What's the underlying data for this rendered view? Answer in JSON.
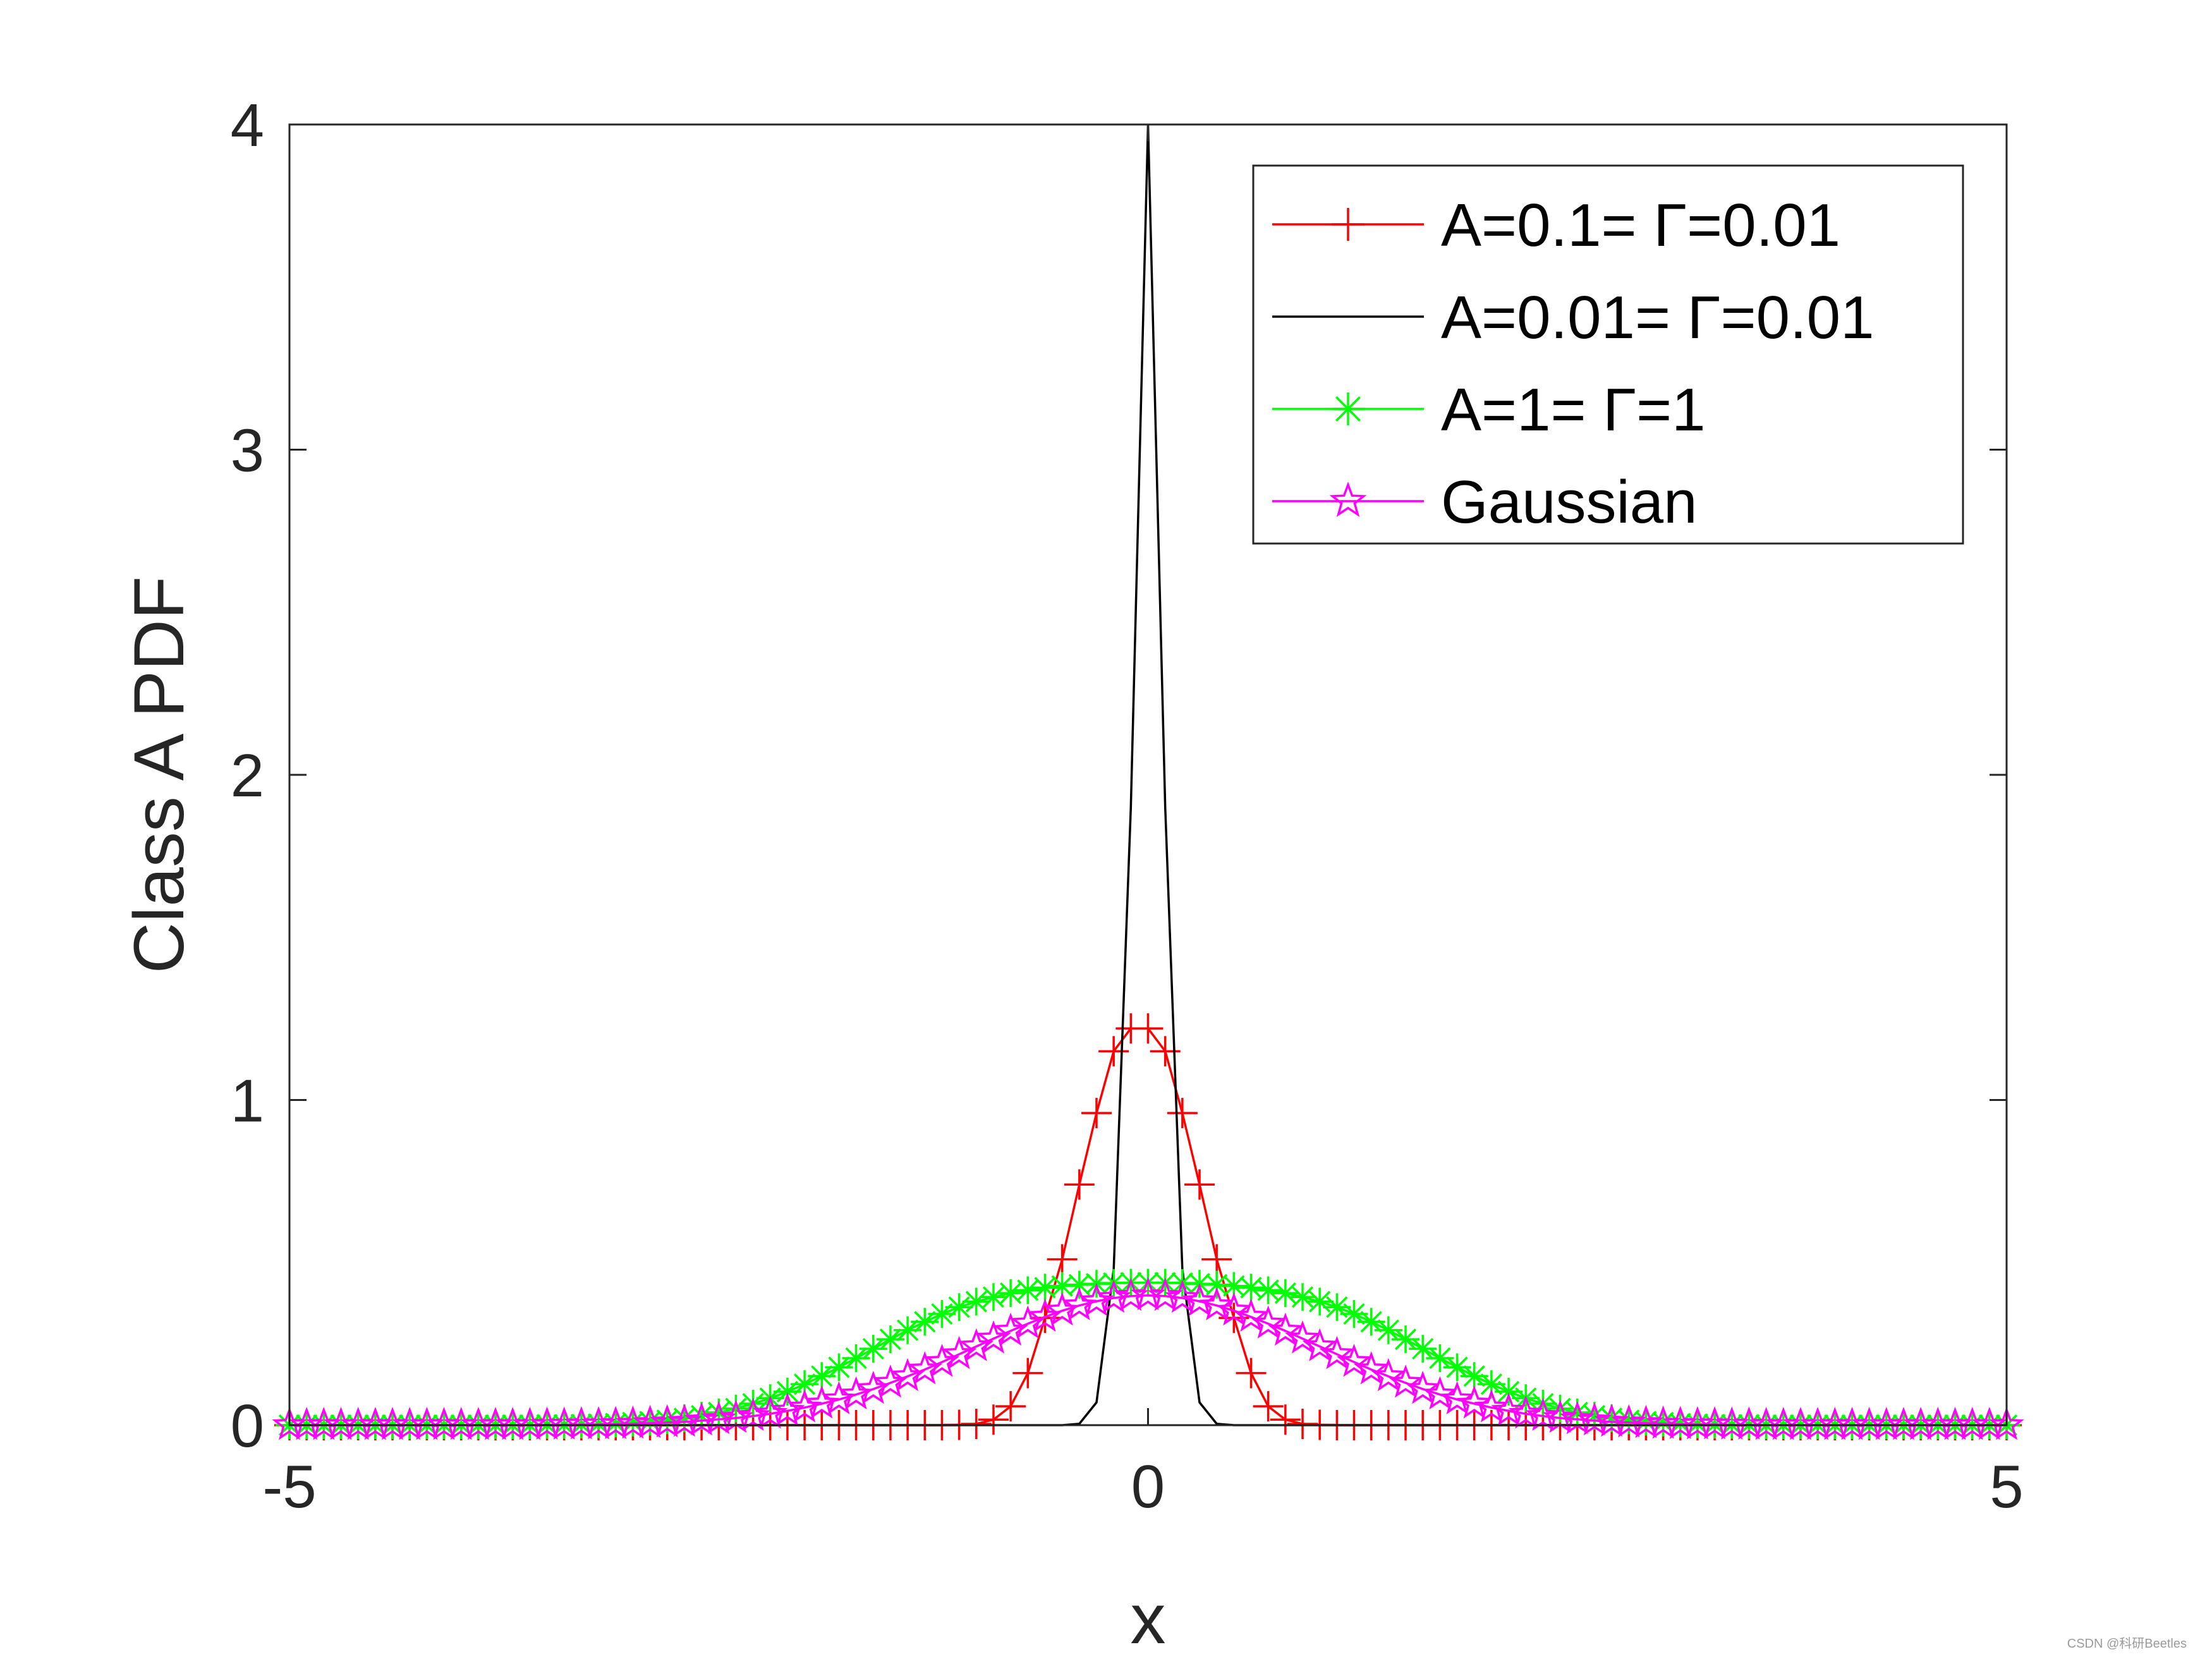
{
  "chart_data": {
    "type": "line",
    "title": "",
    "xlabel": "x",
    "ylabel": "Class A PDF",
    "xlim": [
      -5,
      5
    ],
    "ylim": [
      0,
      4
    ],
    "xticks": [
      "-5",
      "0",
      "5"
    ],
    "yticks": [
      "0",
      "1",
      "2",
      "3",
      "4"
    ],
    "grid": false,
    "legend_position": "top-right",
    "x": [
      -5.0,
      -4.9,
      -4.8,
      -4.7,
      -4.6,
      -4.5,
      -4.4,
      -4.3,
      -4.2,
      -4.1,
      -4.0,
      -3.9,
      -3.8,
      -3.7,
      -3.6,
      -3.5,
      -3.4,
      -3.3,
      -3.2,
      -3.1,
      -3.0,
      -2.9,
      -2.8,
      -2.7,
      -2.6,
      -2.5,
      -2.4,
      -2.3,
      -2.2,
      -2.1,
      -2.0,
      -1.9,
      -1.8,
      -1.7,
      -1.6,
      -1.5,
      -1.4,
      -1.3,
      -1.2,
      -1.1,
      -1.0,
      -0.9,
      -0.8,
      -0.7,
      -0.6,
      -0.5,
      -0.4,
      -0.3,
      -0.2,
      -0.1,
      0.0,
      0.1,
      0.2,
      0.3,
      0.4,
      0.5,
      0.6,
      0.7,
      0.8,
      0.9,
      1.0,
      1.1,
      1.2,
      1.3,
      1.4,
      1.5,
      1.6,
      1.7,
      1.8,
      1.9,
      2.0,
      2.1,
      2.2,
      2.3,
      2.4,
      2.5,
      2.6,
      2.7,
      2.8,
      2.9,
      3.0,
      3.1,
      3.2,
      3.3,
      3.4,
      3.5,
      3.6,
      3.7,
      3.8,
      3.9,
      4.0,
      4.1,
      4.2,
      4.3,
      4.4,
      4.5,
      4.6,
      4.7,
      4.8,
      4.9,
      5.0
    ],
    "series": [
      {
        "name": "A=0.1= Γ=0.01",
        "color": "#ff0000",
        "marker": "plus",
        "values": [
          0,
          0,
          0,
          0,
          0,
          0,
          0,
          0,
          0,
          0,
          0,
          0,
          0,
          0,
          0,
          0,
          0,
          0,
          0,
          0,
          0,
          0,
          0,
          0,
          0,
          0,
          0,
          0,
          0,
          0,
          0,
          0,
          0,
          0,
          0,
          0,
          0,
          0,
          0,
          0.001,
          0.004,
          0.017,
          0.058,
          0.16,
          0.33,
          0.51,
          0.74,
          0.96,
          1.15,
          1.22,
          1.22,
          1.15,
          0.96,
          0.74,
          0.51,
          0.33,
          0.16,
          0.058,
          0.017,
          0.004,
          0.001,
          0,
          0,
          0,
          0,
          0,
          0,
          0,
          0,
          0,
          0,
          0,
          0,
          0,
          0,
          0,
          0,
          0,
          0,
          0,
          0,
          0,
          0,
          0,
          0,
          0,
          0,
          0,
          0,
          0,
          0,
          0,
          0,
          0,
          0,
          0,
          0,
          0,
          0,
          0,
          0
        ]
      },
      {
        "name": "A=0.01= Γ=0.01",
        "color": "#000000",
        "marker": "none",
        "values": [
          0,
          0,
          0,
          0,
          0,
          0,
          0,
          0,
          0,
          0,
          0,
          0,
          0,
          0,
          0,
          0,
          0,
          0,
          0,
          0,
          0,
          0,
          0,
          0,
          0,
          0,
          0,
          0,
          0,
          0,
          0,
          0,
          0,
          0,
          0,
          0,
          0,
          0,
          0,
          0,
          0,
          0,
          0,
          0,
          0,
          0,
          0.004,
          0.07,
          0.48,
          1.9,
          4.0,
          1.9,
          0.48,
          0.07,
          0.004,
          0,
          0,
          0,
          0,
          0,
          0,
          0,
          0,
          0,
          0,
          0,
          0,
          0,
          0,
          0,
          0,
          0,
          0,
          0,
          0,
          0,
          0,
          0,
          0,
          0,
          0,
          0,
          0,
          0,
          0,
          0,
          0,
          0,
          0,
          0,
          0,
          0,
          0,
          0,
          0,
          0,
          0,
          0,
          0,
          0,
          0
        ]
      },
      {
        "name": "A=1= Γ=1",
        "color": "#00ff00",
        "marker": "asterisk",
        "values": [
          0,
          0,
          0,
          0,
          0,
          0,
          0,
          0,
          0,
          0,
          0,
          0,
          0,
          0,
          0,
          0.001,
          0.001,
          0.002,
          0.003,
          0.005,
          0.008,
          0.011,
          0.015,
          0.021,
          0.029,
          0.039,
          0.051,
          0.066,
          0.083,
          0.103,
          0.126,
          0.151,
          0.178,
          0.206,
          0.235,
          0.264,
          0.292,
          0.318,
          0.342,
          0.363,
          0.38,
          0.394,
          0.406,
          0.415,
          0.423,
          0.428,
          0.432,
          0.435,
          0.437,
          0.438,
          0.438,
          0.438,
          0.437,
          0.435,
          0.432,
          0.428,
          0.423,
          0.415,
          0.406,
          0.394,
          0.38,
          0.363,
          0.342,
          0.318,
          0.292,
          0.264,
          0.235,
          0.206,
          0.178,
          0.151,
          0.126,
          0.103,
          0.083,
          0.066,
          0.051,
          0.039,
          0.029,
          0.021,
          0.015,
          0.011,
          0.008,
          0.005,
          0.003,
          0.002,
          0.001,
          0.001,
          0,
          0,
          0,
          0,
          0,
          0,
          0,
          0,
          0,
          0,
          0,
          0,
          0,
          0,
          0
        ]
      },
      {
        "name": "Gaussian",
        "color": "#ff00ff",
        "marker": "pentagram",
        "values": [
          0,
          0,
          0,
          0,
          0,
          0,
          0,
          0,
          0,
          0,
          0,
          0,
          0,
          0,
          0,
          0.001,
          0.001,
          0.002,
          0.002,
          0.003,
          0.004,
          0.006,
          0.008,
          0.01,
          0.014,
          0.018,
          0.022,
          0.028,
          0.035,
          0.044,
          0.054,
          0.066,
          0.079,
          0.094,
          0.111,
          0.13,
          0.15,
          0.171,
          0.194,
          0.218,
          0.242,
          0.266,
          0.29,
          0.312,
          0.333,
          0.352,
          0.368,
          0.381,
          0.391,
          0.397,
          0.399,
          0.397,
          0.391,
          0.381,
          0.368,
          0.352,
          0.333,
          0.312,
          0.29,
          0.266,
          0.242,
          0.218,
          0.194,
          0.171,
          0.15,
          0.13,
          0.111,
          0.094,
          0.079,
          0.066,
          0.054,
          0.044,
          0.035,
          0.028,
          0.022,
          0.018,
          0.014,
          0.01,
          0.008,
          0.006,
          0.004,
          0.003,
          0.002,
          0.002,
          0.001,
          0.001,
          0,
          0,
          0,
          0,
          0,
          0,
          0,
          0,
          0,
          0,
          0,
          0,
          0,
          0,
          0
        ]
      }
    ]
  },
  "watermark": "CSDN @科研Beetles"
}
